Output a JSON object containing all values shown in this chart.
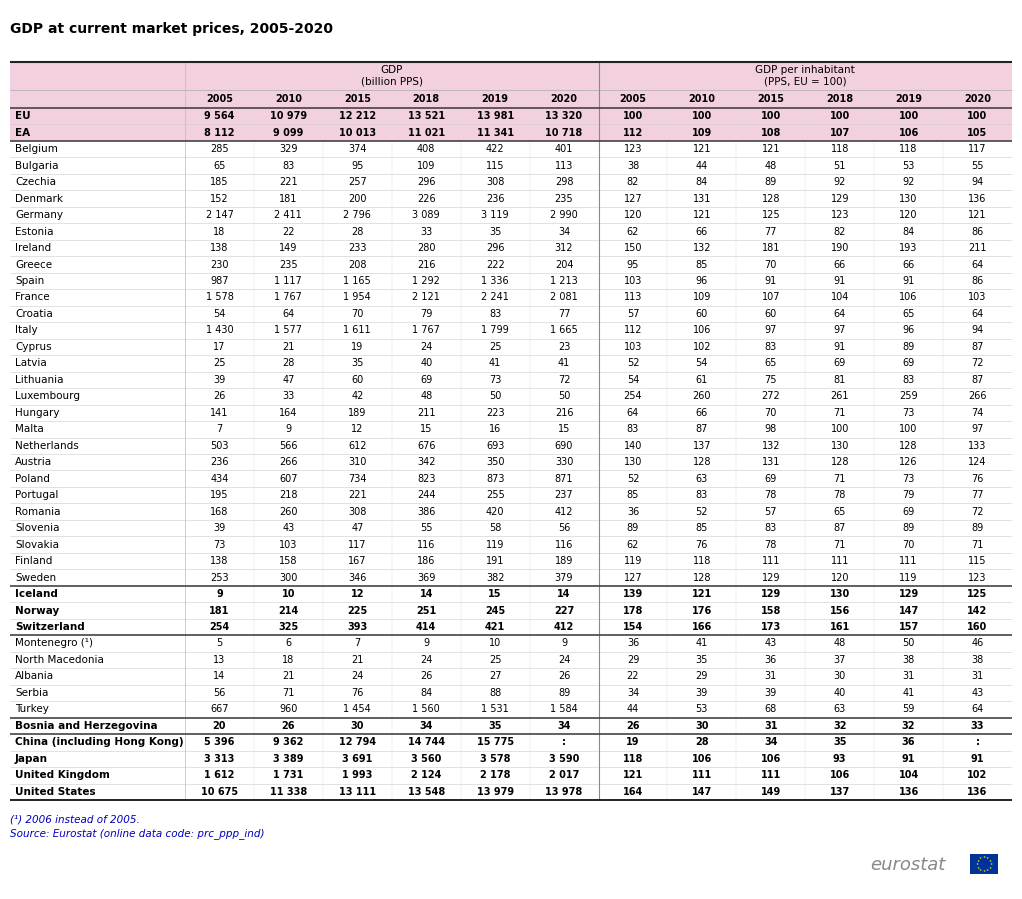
{
  "title": "GDP at current market prices, 2005-2020",
  "rows": [
    [
      "EU",
      "9 564",
      "10 979",
      "12 212",
      "13 521",
      "13 981",
      "13 320",
      "100",
      "100",
      "100",
      "100",
      "100",
      "100"
    ],
    [
      "EA",
      "8 112",
      "9 099",
      "10 013",
      "11 021",
      "11 341",
      "10 718",
      "112",
      "109",
      "108",
      "107",
      "106",
      "105"
    ],
    [
      "Belgium",
      "285",
      "329",
      "374",
      "408",
      "422",
      "401",
      "123",
      "121",
      "121",
      "118",
      "118",
      "117"
    ],
    [
      "Bulgaria",
      "65",
      "83",
      "95",
      "109",
      "115",
      "113",
      "38",
      "44",
      "48",
      "51",
      "53",
      "55"
    ],
    [
      "Czechia",
      "185",
      "221",
      "257",
      "296",
      "308",
      "298",
      "82",
      "84",
      "89",
      "92",
      "92",
      "94"
    ],
    [
      "Denmark",
      "152",
      "181",
      "200",
      "226",
      "236",
      "235",
      "127",
      "131",
      "128",
      "129",
      "130",
      "136"
    ],
    [
      "Germany",
      "2 147",
      "2 411",
      "2 796",
      "3 089",
      "3 119",
      "2 990",
      "120",
      "121",
      "125",
      "123",
      "120",
      "121"
    ],
    [
      "Estonia",
      "18",
      "22",
      "28",
      "33",
      "35",
      "34",
      "62",
      "66",
      "77",
      "82",
      "84",
      "86"
    ],
    [
      "Ireland",
      "138",
      "149",
      "233",
      "280",
      "296",
      "312",
      "150",
      "132",
      "181",
      "190",
      "193",
      "211"
    ],
    [
      "Greece",
      "230",
      "235",
      "208",
      "216",
      "222",
      "204",
      "95",
      "85",
      "70",
      "66",
      "66",
      "64"
    ],
    [
      "Spain",
      "987",
      "1 117",
      "1 165",
      "1 292",
      "1 336",
      "1 213",
      "103",
      "96",
      "91",
      "91",
      "91",
      "86"
    ],
    [
      "France",
      "1 578",
      "1 767",
      "1 954",
      "2 121",
      "2 241",
      "2 081",
      "113",
      "109",
      "107",
      "104",
      "106",
      "103"
    ],
    [
      "Croatia",
      "54",
      "64",
      "70",
      "79",
      "83",
      "77",
      "57",
      "60",
      "60",
      "64",
      "65",
      "64"
    ],
    [
      "Italy",
      "1 430",
      "1 577",
      "1 611",
      "1 767",
      "1 799",
      "1 665",
      "112",
      "106",
      "97",
      "97",
      "96",
      "94"
    ],
    [
      "Cyprus",
      "17",
      "21",
      "19",
      "24",
      "25",
      "23",
      "103",
      "102",
      "83",
      "91",
      "89",
      "87"
    ],
    [
      "Latvia",
      "25",
      "28",
      "35",
      "40",
      "41",
      "41",
      "52",
      "54",
      "65",
      "69",
      "69",
      "72"
    ],
    [
      "Lithuania",
      "39",
      "47",
      "60",
      "69",
      "73",
      "72",
      "54",
      "61",
      "75",
      "81",
      "83",
      "87"
    ],
    [
      "Luxembourg",
      "26",
      "33",
      "42",
      "48",
      "50",
      "50",
      "254",
      "260",
      "272",
      "261",
      "259",
      "266"
    ],
    [
      "Hungary",
      "141",
      "164",
      "189",
      "211",
      "223",
      "216",
      "64",
      "66",
      "70",
      "71",
      "73",
      "74"
    ],
    [
      "Malta",
      "7",
      "9",
      "12",
      "15",
      "16",
      "15",
      "83",
      "87",
      "98",
      "100",
      "100",
      "97"
    ],
    [
      "Netherlands",
      "503",
      "566",
      "612",
      "676",
      "693",
      "690",
      "140",
      "137",
      "132",
      "130",
      "128",
      "133"
    ],
    [
      "Austria",
      "236",
      "266",
      "310",
      "342",
      "350",
      "330",
      "130",
      "128",
      "131",
      "128",
      "126",
      "124"
    ],
    [
      "Poland",
      "434",
      "607",
      "734",
      "823",
      "873",
      "871",
      "52",
      "63",
      "69",
      "71",
      "73",
      "76"
    ],
    [
      "Portugal",
      "195",
      "218",
      "221",
      "244",
      "255",
      "237",
      "85",
      "83",
      "78",
      "78",
      "79",
      "77"
    ],
    [
      "Romania",
      "168",
      "260",
      "308",
      "386",
      "420",
      "412",
      "36",
      "52",
      "57",
      "65",
      "69",
      "72"
    ],
    [
      "Slovenia",
      "39",
      "43",
      "47",
      "55",
      "58",
      "56",
      "89",
      "85",
      "83",
      "87",
      "89",
      "89"
    ],
    [
      "Slovakia",
      "73",
      "103",
      "117",
      "116",
      "119",
      "116",
      "62",
      "76",
      "78",
      "71",
      "70",
      "71"
    ],
    [
      "Finland",
      "138",
      "158",
      "167",
      "186",
      "191",
      "189",
      "119",
      "118",
      "111",
      "111",
      "111",
      "115"
    ],
    [
      "Sweden",
      "253",
      "300",
      "346",
      "369",
      "382",
      "379",
      "127",
      "128",
      "129",
      "120",
      "119",
      "123"
    ],
    [
      "Iceland",
      "9",
      "10",
      "12",
      "14",
      "15",
      "14",
      "139",
      "121",
      "129",
      "130",
      "129",
      "125"
    ],
    [
      "Norway",
      "181",
      "214",
      "225",
      "251",
      "245",
      "227",
      "178",
      "176",
      "158",
      "156",
      "147",
      "142"
    ],
    [
      "Switzerland",
      "254",
      "325",
      "393",
      "414",
      "421",
      "412",
      "154",
      "166",
      "173",
      "161",
      "157",
      "160"
    ],
    [
      "Montenegro (¹)",
      "5",
      "6",
      "7",
      "9",
      "10",
      "9",
      "36",
      "41",
      "43",
      "48",
      "50",
      "46"
    ],
    [
      "North Macedonia",
      "13",
      "18",
      "21",
      "24",
      "25",
      "24",
      "29",
      "35",
      "36",
      "37",
      "38",
      "38"
    ],
    [
      "Albania",
      "14",
      "21",
      "24",
      "26",
      "27",
      "26",
      "22",
      "29",
      "31",
      "30",
      "31",
      "31"
    ],
    [
      "Serbia",
      "56",
      "71",
      "76",
      "84",
      "88",
      "89",
      "34",
      "39",
      "39",
      "40",
      "41",
      "43"
    ],
    [
      "Turkey",
      "667",
      "960",
      "1 454",
      "1 560",
      "1 531",
      "1 584",
      "44",
      "53",
      "68",
      "63",
      "59",
      "64"
    ],
    [
      "Bosnia and Herzegovina",
      "20",
      "26",
      "30",
      "34",
      "35",
      "34",
      "26",
      "30",
      "31",
      "32",
      "32",
      "33"
    ],
    [
      "China (including Hong Kong)",
      "5 396",
      "9 362",
      "12 794",
      "14 744",
      "15 775",
      ":",
      "19",
      "28",
      "34",
      "35",
      "36",
      ":"
    ],
    [
      "Japan",
      "3 313",
      "3 389",
      "3 691",
      "3 560",
      "3 578",
      "3 590",
      "118",
      "106",
      "106",
      "93",
      "91",
      "91"
    ],
    [
      "United Kingdom",
      "1 612",
      "1 731",
      "1 993",
      "2 124",
      "2 178",
      "2 017",
      "121",
      "111",
      "111",
      "106",
      "104",
      "102"
    ],
    [
      "United States",
      "10 675",
      "11 338",
      "13 111",
      "13 548",
      "13 979",
      "13 978",
      "164",
      "147",
      "149",
      "137",
      "136",
      "136"
    ]
  ],
  "eu_ea_rows": [
    0,
    1
  ],
  "bold_rows": [
    0,
    1,
    29,
    30,
    31,
    37,
    38,
    39,
    40,
    41
  ],
  "thick_sep_after": [
    1,
    28,
    31,
    36,
    37
  ],
  "pink_header_bg": "#f2d0e0",
  "pink_row_bg": "#f2d0e0",
  "white_bg": "#ffffff",
  "light_pink_row_bg": "#fce8f3",
  "footer_note": "(¹) 2006 instead of 2005.",
  "footer_source": "Source: Eurostat (online data code: prc_ppp_ind)"
}
